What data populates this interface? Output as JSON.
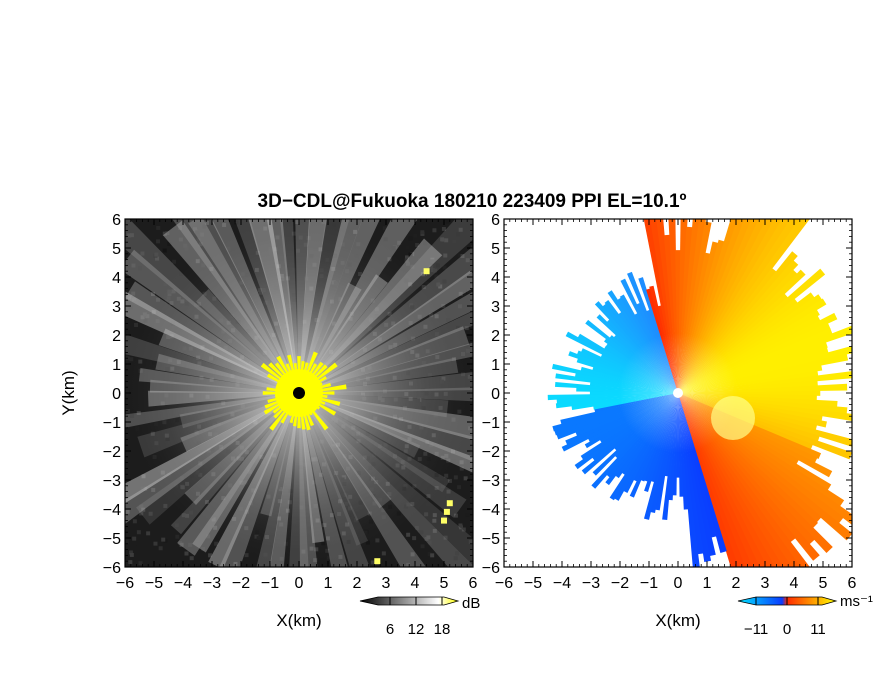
{
  "title": "3D−CDL@Fukuoka 180210 223409 PPI EL=10.1º",
  "chart_data": [
    {
      "type": "heatmap",
      "panel": "left",
      "quantity": "reflectivity",
      "xlabel": "X(km)",
      "ylabel": "Y(km)",
      "xlim": [
        -6,
        6
      ],
      "ylim": [
        -6,
        6
      ],
      "xticks": [
        -6,
        -5,
        -4,
        -3,
        -2,
        -1,
        0,
        1,
        2,
        3,
        4,
        5,
        6
      ],
      "yticks": [
        -6,
        -5,
        -4,
        -3,
        -2,
        -1,
        0,
        1,
        2,
        3,
        4,
        5,
        6
      ],
      "xtick_labels": [
        "−6",
        "−5",
        "−4",
        "−3",
        "−2",
        "−1",
        "0",
        "1",
        "2",
        "3",
        "4",
        "5",
        "6"
      ],
      "ytick_labels": [
        "−6",
        "−5",
        "−4",
        "−3",
        "−2",
        "−1",
        "0",
        "1",
        "2",
        "3",
        "4",
        "5",
        "6"
      ],
      "colorbar": {
        "ticks": [
          6,
          12,
          18
        ],
        "tick_labels": [
          "6",
          "12",
          "18"
        ],
        "unit": "dB",
        "colors": [
          "#000000",
          "#ffffff",
          "#ffff00"
        ]
      },
      "radar_origin": [
        0,
        0
      ],
      "grid": false
    },
    {
      "type": "heatmap",
      "panel": "right",
      "quantity": "radial_velocity",
      "xlabel": "X(km)",
      "xlim": [
        -6,
        6
      ],
      "ylim": [
        -6,
        6
      ],
      "xticks": [
        -6,
        -5,
        -4,
        -3,
        -2,
        -1,
        0,
        1,
        2,
        3,
        4,
        5,
        6
      ],
      "yticks": [
        -6,
        -5,
        -4,
        -3,
        -2,
        -1,
        0,
        1,
        2,
        3,
        4,
        5,
        6
      ],
      "xtick_labels": [
        "−6",
        "−5",
        "−4",
        "−3",
        "−2",
        "−1",
        "0",
        "1",
        "2",
        "3",
        "4",
        "5",
        "6"
      ],
      "ytick_labels": [
        "−6",
        "−5",
        "−4",
        "−3",
        "−2",
        "−1",
        "0",
        "1",
        "2",
        "3",
        "4",
        "5",
        "6"
      ],
      "colorbar": {
        "ticks": [
          -11,
          0,
          11
        ],
        "tick_labels": [
          "−11",
          "0",
          "11"
        ],
        "unit": "ms⁻¹",
        "colors": [
          "#00e5ff",
          "#0a3cff",
          "#ff2a00",
          "#ffff00"
        ]
      },
      "radar_origin": [
        0,
        0
      ],
      "grid": false
    }
  ]
}
